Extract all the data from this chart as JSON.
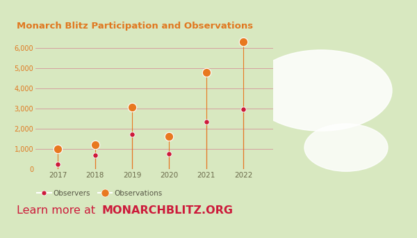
{
  "title": "Monarch Blitz Participation and Observations",
  "title_color": "#e07820",
  "background_color": "#d8e8c0",
  "plot_area_color": "#d8e8c0",
  "years": [
    2017,
    2018,
    2019,
    2020,
    2021,
    2022
  ],
  "observers": [
    250,
    700,
    1700,
    750,
    2350,
    2950
  ],
  "observations": [
    1000,
    1200,
    3050,
    1600,
    4800,
    6300
  ],
  "observer_color": "#cc1a3a",
  "observation_color": "#e87820",
  "grid_color": "#d4a0a0",
  "ytick_color": "#e07820",
  "xtick_color": "#6a6a4a",
  "ylim": [
    0,
    6600
  ],
  "yticks": [
    0,
    1000,
    2000,
    3000,
    4000,
    5000,
    6000
  ],
  "ytick_labels": [
    "0",
    "1,000",
    "2,000",
    "3,000",
    "4,000",
    "5,000",
    "6,000"
  ],
  "bottom_text_regular": "Learn more at ",
  "bottom_text_bold": "MONARCHBLITZ.ORG",
  "bottom_text_color": "#cc1a3a",
  "legend_observers": "Observers",
  "legend_observations": "Observations",
  "footer_bg": "#f5f5f0",
  "stem_color_observer": "#cc1a3a",
  "stem_color_observation": "#e87820"
}
